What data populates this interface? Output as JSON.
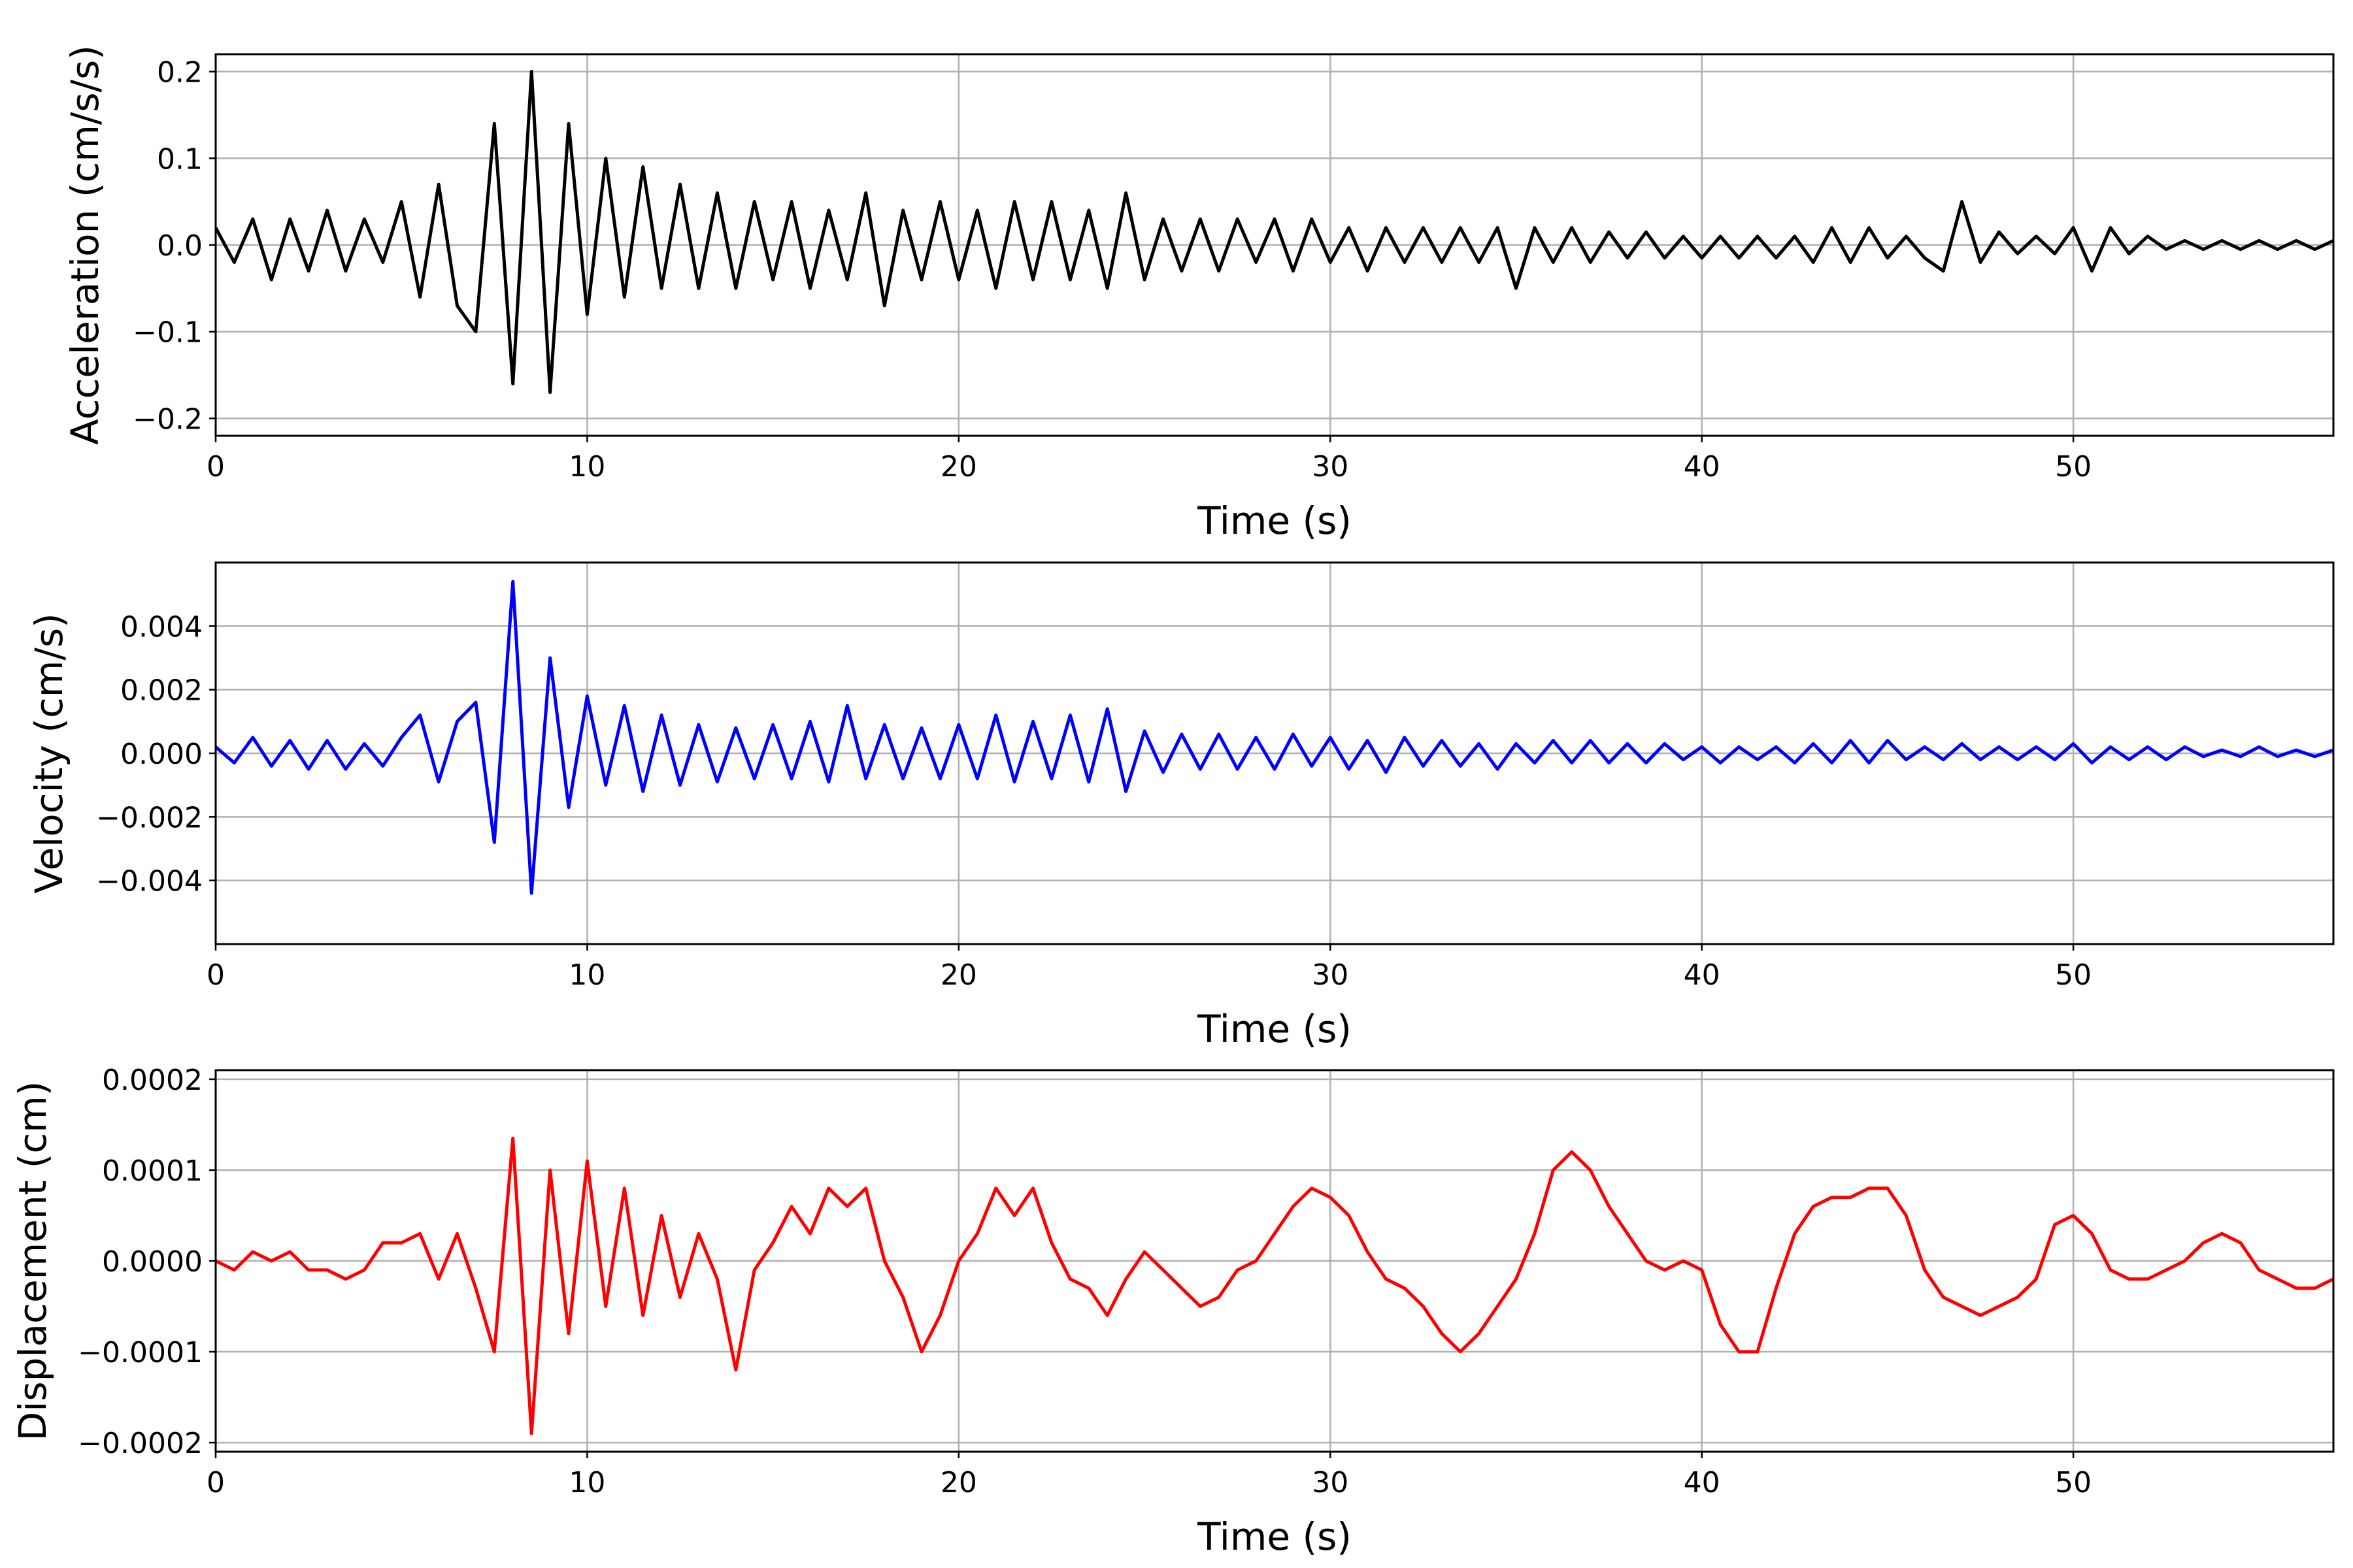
{
  "chart_data": [
    {
      "type": "line",
      "title": "",
      "xlabel": "Time (s)",
      "ylabel": "Acceleration (cm/s/s)",
      "xlim": [
        0,
        57
      ],
      "ylim": [
        -0.22,
        0.22
      ],
      "xticks": [
        0,
        10,
        20,
        30,
        40,
        50
      ],
      "xtick_labels": [
        "0",
        "10",
        "20",
        "30",
        "40",
        "50"
      ],
      "yticks": [
        -0.2,
        -0.1,
        0.0,
        0.1,
        0.2
      ],
      "ytick_labels": [
        "−0.2",
        "−0.1",
        "0.0",
        "0.1",
        "0.2"
      ],
      "grid": true,
      "color": "#000000",
      "x_start": 0,
      "x_step": 0.5,
      "values": [
        0.02,
        -0.02,
        0.03,
        -0.04,
        0.03,
        -0.03,
        0.04,
        -0.03,
        0.03,
        -0.02,
        0.05,
        -0.06,
        0.07,
        -0.07,
        -0.1,
        0.14,
        -0.16,
        0.2,
        -0.17,
        0.14,
        -0.08,
        0.1,
        -0.06,
        0.09,
        -0.05,
        0.07,
        -0.05,
        0.06,
        -0.05,
        0.05,
        -0.04,
        0.05,
        -0.05,
        0.04,
        -0.04,
        0.06,
        -0.07,
        0.04,
        -0.04,
        0.05,
        -0.04,
        0.04,
        -0.05,
        0.05,
        -0.04,
        0.05,
        -0.04,
        0.04,
        -0.05,
        0.06,
        -0.04,
        0.03,
        -0.03,
        0.03,
        -0.03,
        0.03,
        -0.02,
        0.03,
        -0.03,
        0.03,
        -0.02,
        0.02,
        -0.03,
        0.02,
        -0.02,
        0.02,
        -0.02,
        0.02,
        -0.02,
        0.02,
        -0.05,
        0.02,
        -0.02,
        0.02,
        -0.02,
        0.015,
        -0.015,
        0.015,
        -0.015,
        0.01,
        -0.015,
        0.01,
        -0.015,
        0.01,
        -0.015,
        0.01,
        -0.02,
        0.02,
        -0.02,
        0.02,
        -0.015,
        0.01,
        -0.015,
        -0.03,
        0.05,
        -0.02,
        0.015,
        -0.01,
        0.01,
        -0.01,
        0.02,
        -0.03,
        0.02,
        -0.01,
        0.01,
        -0.005,
        0.005,
        -0.005,
        0.005,
        -0.005,
        0.005,
        -0.005,
        0.005,
        -0.005,
        0.005
      ]
    },
    {
      "type": "line",
      "title": "",
      "xlabel": "Time (s)",
      "ylabel": "Velocity (cm/s)",
      "xlim": [
        0,
        57
      ],
      "ylim": [
        -0.006,
        0.006
      ],
      "xticks": [
        0,
        10,
        20,
        30,
        40,
        50
      ],
      "xtick_labels": [
        "0",
        "10",
        "20",
        "30",
        "40",
        "50"
      ],
      "yticks": [
        -0.004,
        -0.002,
        0.0,
        0.002,
        0.004
      ],
      "ytick_labels": [
        "−0.004",
        "−0.002",
        "0.000",
        "0.002",
        "0.004"
      ],
      "grid": true,
      "color": "#0000ff",
      "x_start": 0,
      "x_step": 0.5,
      "values": [
        0.0002,
        -0.0003,
        0.0005,
        -0.0004,
        0.0004,
        -0.0005,
        0.0004,
        -0.0005,
        0.0003,
        -0.0004,
        0.0005,
        0.0012,
        -0.0009,
        0.001,
        0.0016,
        -0.0028,
        0.0054,
        -0.0044,
        0.003,
        -0.0017,
        0.0018,
        -0.001,
        0.0015,
        -0.0012,
        0.0012,
        -0.001,
        0.0009,
        -0.0009,
        0.0008,
        -0.0008,
        0.0009,
        -0.0008,
        0.001,
        -0.0009,
        0.0015,
        -0.0008,
        0.0009,
        -0.0008,
        0.0008,
        -0.0008,
        0.0009,
        -0.0008,
        0.0012,
        -0.0009,
        0.001,
        -0.0008,
        0.0012,
        -0.0009,
        0.0014,
        -0.0012,
        0.0007,
        -0.0006,
        0.0006,
        -0.0005,
        0.0006,
        -0.0005,
        0.0005,
        -0.0005,
        0.0006,
        -0.0004,
        0.0005,
        -0.0005,
        0.0004,
        -0.0006,
        0.0005,
        -0.0004,
        0.0004,
        -0.0004,
        0.0003,
        -0.0005,
        0.0003,
        -0.0003,
        0.0004,
        -0.0003,
        0.0004,
        -0.0003,
        0.0003,
        -0.0003,
        0.0003,
        -0.0002,
        0.0002,
        -0.0003,
        0.0002,
        -0.0002,
        0.0002,
        -0.0003,
        0.0003,
        -0.0003,
        0.0004,
        -0.0003,
        0.0004,
        -0.0002,
        0.0002,
        -0.0002,
        0.0003,
        -0.0002,
        0.0002,
        -0.0002,
        0.0002,
        -0.0002,
        0.0003,
        -0.0003,
        0.0002,
        -0.0002,
        0.0002,
        -0.0002,
        0.0002,
        -0.0001,
        0.0001,
        -0.0001,
        0.0002,
        -0.0001,
        0.0001,
        -0.0001,
        0.0001
      ]
    },
    {
      "type": "line",
      "title": "",
      "xlabel": "Time (s)",
      "ylabel": "Displacement (cm)",
      "xlim": [
        0,
        57
      ],
      "ylim": [
        -0.00021,
        0.00021
      ],
      "xticks": [
        0,
        10,
        20,
        30,
        40,
        50
      ],
      "xtick_labels": [
        "0",
        "10",
        "20",
        "30",
        "40",
        "50"
      ],
      "yticks": [
        -0.0002,
        -0.0001,
        0.0,
        0.0001,
        0.0002
      ],
      "ytick_labels": [
        "−0.0002",
        "−0.0001",
        "0.0000",
        "0.0001",
        "0.0002"
      ],
      "grid": true,
      "color": "#ff0000",
      "x_start": 0,
      "x_step": 0.5,
      "values": [
        0.0,
        -1e-05,
        1e-05,
        0.0,
        1e-05,
        -1e-05,
        -1e-05,
        -2e-05,
        -1e-05,
        2e-05,
        2e-05,
        3e-05,
        -2e-05,
        3e-05,
        -3e-05,
        -0.0001,
        0.000135,
        -0.00019,
        0.0001,
        -8e-05,
        0.00011,
        -5e-05,
        8e-05,
        -6e-05,
        5e-05,
        -4e-05,
        3e-05,
        -2e-05,
        -0.00012,
        -1e-05,
        2e-05,
        6e-05,
        3e-05,
        8e-05,
        6e-05,
        8e-05,
        0.0,
        -4e-05,
        -0.0001,
        -6e-05,
        0.0,
        3e-05,
        8e-05,
        5e-05,
        8e-05,
        2e-05,
        -2e-05,
        -3e-05,
        -6e-05,
        -2e-05,
        1e-05,
        -1e-05,
        -3e-05,
        -5e-05,
        -4e-05,
        -1e-05,
        0.0,
        3e-05,
        6e-05,
        8e-05,
        7e-05,
        5e-05,
        1e-05,
        -2e-05,
        -3e-05,
        -5e-05,
        -8e-05,
        -0.0001,
        -8e-05,
        -5e-05,
        -2e-05,
        3e-05,
        0.0001,
        0.00012,
        0.0001,
        6e-05,
        3e-05,
        0.0,
        -1e-05,
        0.0,
        -1e-05,
        -7e-05,
        -0.0001,
        -0.0001,
        -3e-05,
        3e-05,
        6e-05,
        7e-05,
        7e-05,
        8e-05,
        8e-05,
        5e-05,
        -1e-05,
        -4e-05,
        -5e-05,
        -6e-05,
        -5e-05,
        -4e-05,
        -2e-05,
        4e-05,
        5e-05,
        3e-05,
        -1e-05,
        -2e-05,
        -2e-05,
        -1e-05,
        0.0,
        2e-05,
        3e-05,
        2e-05,
        -1e-05,
        -2e-05,
        -3e-05,
        -3e-05,
        -2e-05
      ]
    }
  ]
}
